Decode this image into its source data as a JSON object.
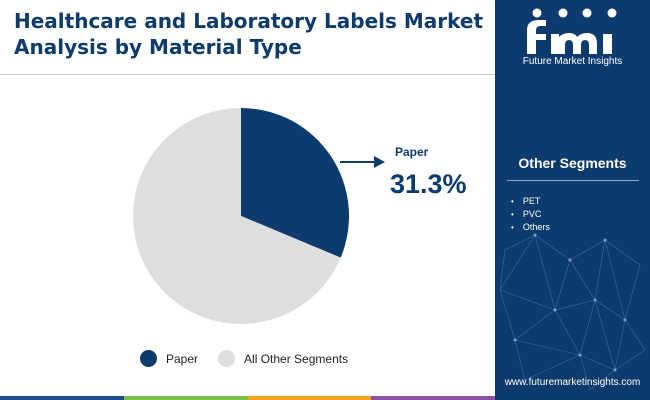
{
  "title": {
    "line1": "Healthcare and Laboratory Labels Market",
    "line2": "Analysis by Material Type"
  },
  "brand": {
    "logo_text": "Future Market Insights",
    "website": "www.futuremarketinsights.com"
  },
  "sidebar": {
    "heading": "Other Segments",
    "items": [
      "PET",
      "PVC",
      "Others"
    ]
  },
  "callout": {
    "label": "Paper",
    "value_text": "31.3%"
  },
  "legend": [
    "Paper",
    "All Other Segments"
  ],
  "colors": {
    "primary": "#0d3b6e",
    "other": "#dedede",
    "bar": [
      "#1d4f8e",
      "#7cc142",
      "#f6a21d",
      "#8a52a3"
    ]
  },
  "chart_data": {
    "type": "pie",
    "title": "Healthcare and Laboratory Labels Market Analysis by Material Type",
    "slices": [
      {
        "label": "Paper",
        "value": 31.3,
        "color": "#0d3b6e"
      },
      {
        "label": "All Other Segments",
        "value": 68.7,
        "color": "#dedede"
      }
    ]
  }
}
